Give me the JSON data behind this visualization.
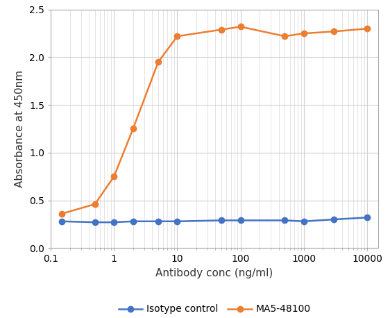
{
  "x_values": [
    0.15,
    0.5,
    1.0,
    2.0,
    5.0,
    10.0,
    50.0,
    100.0,
    500.0,
    1000.0,
    3000.0,
    10000.0
  ],
  "isotype_y": [
    0.28,
    0.27,
    0.27,
    0.28,
    0.28,
    0.28,
    0.29,
    0.29,
    0.29,
    0.28,
    0.3,
    0.32
  ],
  "ma5_y": [
    0.36,
    0.46,
    0.75,
    1.25,
    1.95,
    2.22,
    2.29,
    2.32,
    2.22,
    2.25,
    2.27,
    2.3
  ],
  "isotype_color": "#4472C4",
  "ma5_color": "#ED7D31",
  "xlabel": "Antibody conc (ng/ml)",
  "ylabel": "Absorbance at 450nm",
  "xlim": [
    0.1,
    15000
  ],
  "ylim": [
    0,
    2.5
  ],
  "yticks": [
    0,
    0.5,
    1.0,
    1.5,
    2.0,
    2.5
  ],
  "xtick_values": [
    0.1,
    1,
    10,
    100,
    1000,
    10000
  ],
  "xtick_labels": [
    "0.1",
    "1",
    "10",
    "100",
    "1000",
    "10000"
  ],
  "legend_isotype": "Isotype control",
  "legend_ma5": "MA5-48100",
  "marker_size": 6,
  "line_width": 1.8,
  "grid_color": "#D0D0D0",
  "background_color": "#FFFFFF",
  "spine_color": "#AAAAAA",
  "tick_label_fontsize": 10,
  "axis_label_fontsize": 11,
  "legend_fontsize": 10
}
